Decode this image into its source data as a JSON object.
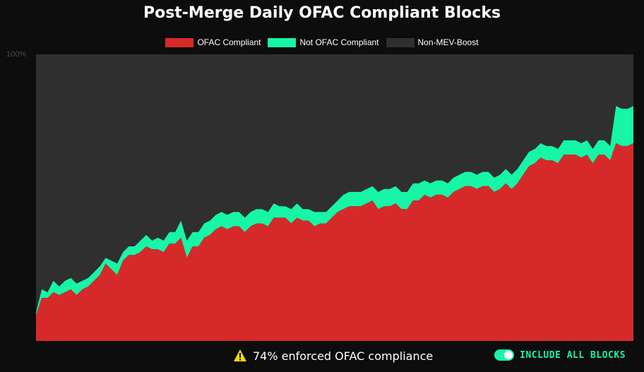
{
  "chart_data": {
    "type": "area",
    "stacked": true,
    "title": "Post-Merge Daily OFAC Compliant Blocks",
    "ytick_label": "100%",
    "ylim": [
      0,
      100
    ],
    "legend_position": "top-center",
    "grid": false,
    "series": [
      {
        "name": "OFAC Compliant",
        "color": "#d62a2a",
        "values": [
          9,
          15,
          15,
          17,
          16,
          17,
          18,
          16,
          18,
          19,
          21,
          23,
          27,
          25,
          23,
          28,
          30,
          30,
          31,
          33,
          32,
          32,
          31,
          34,
          34,
          36,
          29,
          33,
          33,
          36,
          37,
          39,
          40,
          39,
          40,
          40,
          38,
          40,
          41,
          41,
          40,
          43,
          43,
          43,
          41,
          43,
          42,
          42,
          40,
          41,
          41,
          43,
          45,
          46,
          47,
          47,
          47,
          48,
          49,
          46,
          47,
          47,
          48,
          46,
          46,
          49,
          49,
          51,
          50,
          51,
          51,
          50,
          52,
          53,
          54,
          54,
          53,
          54,
          54,
          52,
          53,
          55,
          53,
          55,
          58,
          61,
          62,
          64,
          63,
          63,
          62,
          65,
          65,
          65,
          64,
          65,
          62,
          65,
          65,
          63,
          69,
          68,
          68,
          69
        ]
      },
      {
        "name": "Not OFAC Compliant",
        "color": "#17f5a6",
        "values": [
          1,
          3,
          2,
          4,
          3,
          4,
          4,
          4,
          3,
          3,
          3,
          3,
          2,
          3,
          4,
          3,
          3,
          3,
          4,
          4,
          3,
          4,
          4,
          4,
          4,
          6,
          6,
          5,
          5,
          5,
          5,
          5,
          5,
          5,
          5,
          5,
          5,
          5,
          5,
          5,
          5,
          5,
          4,
          4,
          5,
          5,
          4,
          4,
          5,
          4,
          4,
          4,
          4,
          5,
          5,
          5,
          5,
          5,
          5,
          6,
          6,
          6,
          6,
          6,
          6,
          6,
          6,
          5,
          5,
          5,
          5,
          5,
          5,
          5,
          5,
          5,
          5,
          5,
          5,
          5,
          5,
          5,
          5,
          5,
          5,
          5,
          5,
          5,
          5,
          5,
          5,
          5,
          5,
          5,
          5,
          5,
          5,
          5,
          5,
          5,
          13,
          13,
          13,
          13
        ]
      },
      {
        "name": "Non-MEV-Boost",
        "color": "#2f2f2f",
        "fill_to": 100
      }
    ]
  },
  "footer": {
    "note": "74% enforced OFAC compliance",
    "toggle_label": "INCLUDE ALL BLOCKS",
    "toggle_on": true,
    "accent": "#17f5a6",
    "warning_color": "#f5d90a"
  }
}
